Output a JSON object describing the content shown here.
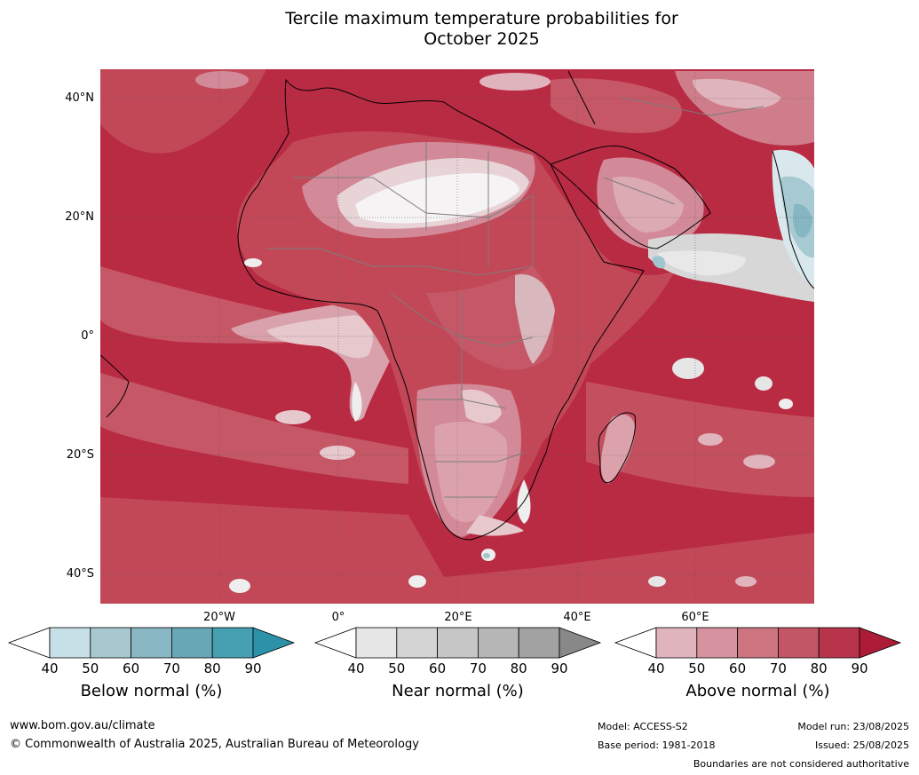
{
  "title_line1": "Tercile maximum temperature probabilities for",
  "title_line2": "October 2025",
  "lat_labels": [
    "40°N",
    "20°N",
    "0°",
    "20°S",
    "40°S"
  ],
  "lon_labels": [
    "20°W",
    "0°",
    "20°E",
    "40°E",
    "60°E"
  ],
  "colorbars": [
    {
      "name": "Below normal (%)",
      "ticks": [
        "40",
        "50",
        "60",
        "70",
        "80",
        "90"
      ],
      "colors": [
        "#ffffff",
        "#c7e0e7",
        "#a7c8cf",
        "#88b6c2",
        "#68a7b6",
        "#45a0b2",
        "#2b92a8"
      ]
    },
    {
      "name": "Near normal (%)",
      "ticks": [
        "40",
        "50",
        "60",
        "70",
        "80",
        "90"
      ],
      "colors": [
        "#ffffff",
        "#e6e6e6",
        "#d4d4d4",
        "#c6c6c6",
        "#b6b6b6",
        "#a2a2a2",
        "#888888"
      ]
    },
    {
      "name": "Above normal (%)",
      "ticks": [
        "40",
        "50",
        "60",
        "70",
        "80",
        "90"
      ],
      "colors": [
        "#ffffff",
        "#e0b4bc",
        "#d6939f",
        "#cc7580",
        "#c35664",
        "#b8344a",
        "#ad1c36"
      ]
    }
  ],
  "footer": {
    "url": "www.bom.gov.au/climate",
    "copyright": "© Commonwealth of Australia 2025, Australian Bureau of Meteorology",
    "model": "Model: ACCESS-S2",
    "base_period": "Base period: 1981-2018",
    "model_run": "Model run: 23/08/2025",
    "issued": "Issued: 25/08/2025",
    "disclaimer": "Boundaries are not considered authoritative"
  }
}
